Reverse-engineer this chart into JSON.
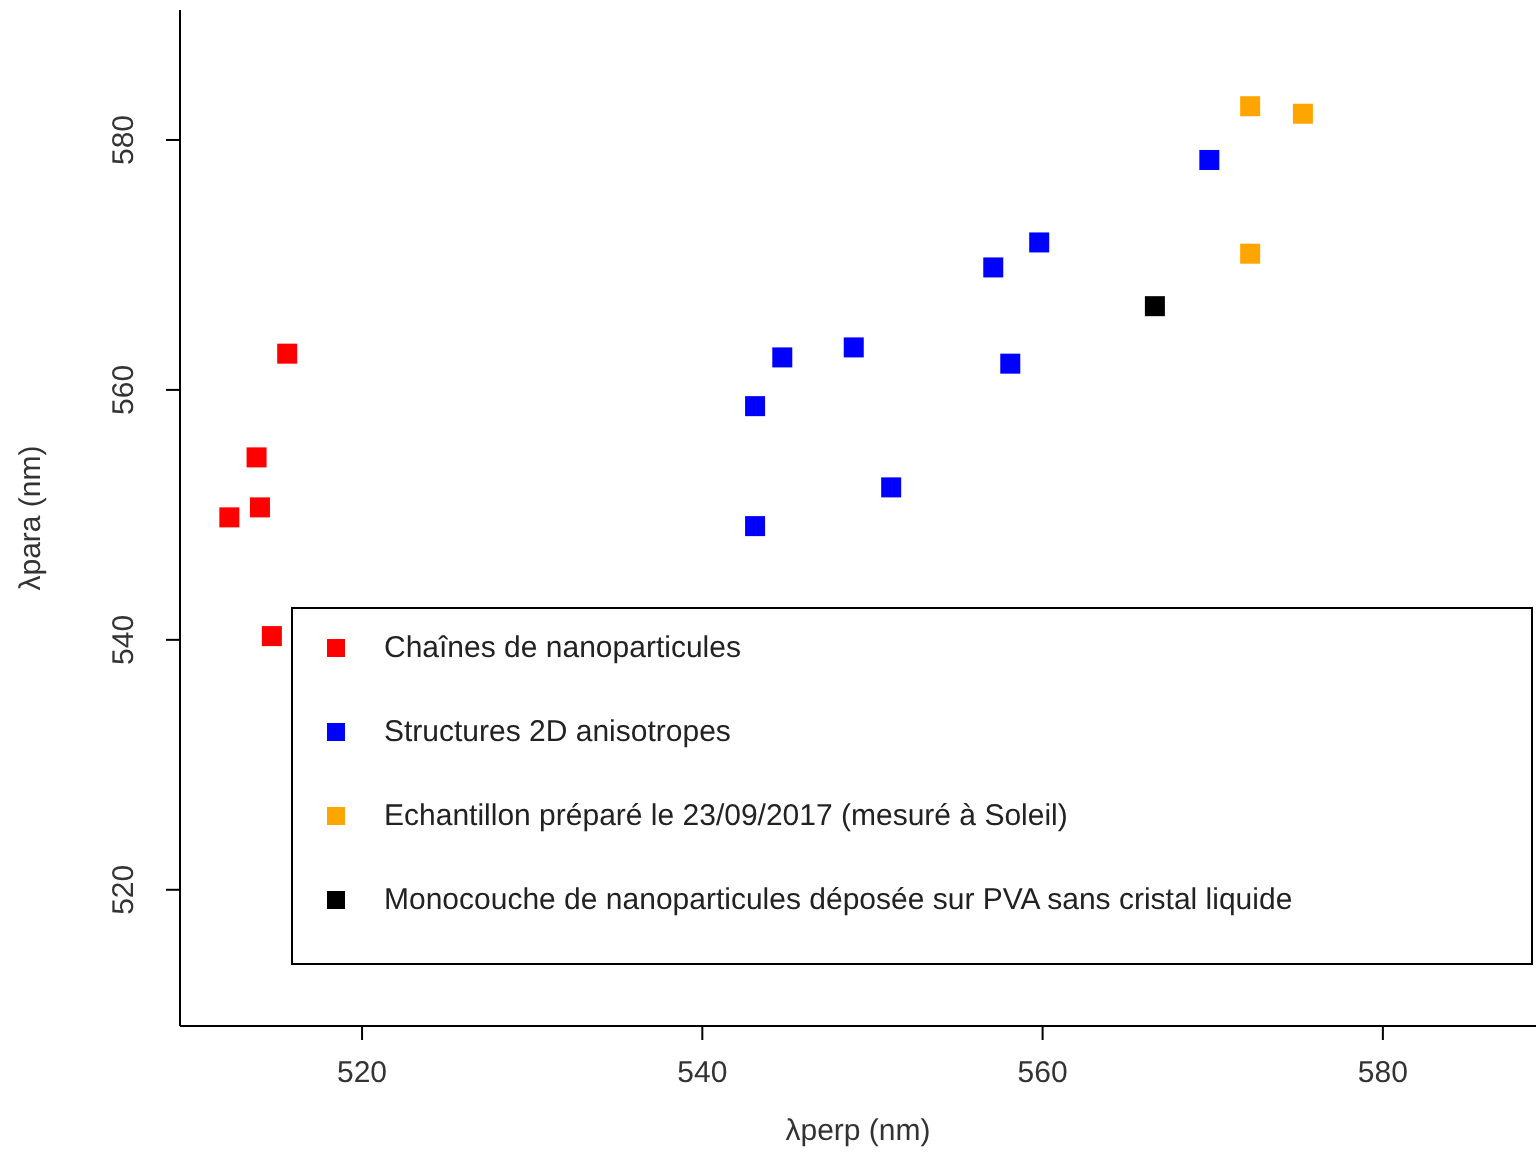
{
  "chart_data": {
    "type": "scatter",
    "xlabel": "λperp (nm)",
    "ylabel": "λpara (nm)",
    "xlim": [
      509.3,
      589
    ],
    "ylim": [
      509.1,
      590.4
    ],
    "xticks": [
      520,
      540,
      560,
      580
    ],
    "yticks": [
      520,
      540,
      560,
      580
    ],
    "grid": false,
    "legend": "bottom right",
    "marker": "square",
    "series": [
      {
        "name": "Chaînes de nanoparticules",
        "color": "#ff0000",
        "x": [
          512.2,
          513.8,
          514.0,
          515.6,
          514.7
        ],
        "values": [
          549.8,
          554.6,
          550.6,
          562.9,
          540.3
        ]
      },
      {
        "name": "Structures 2D anisotropes",
        "color": "#0000ff",
        "x": [
          543.1,
          543.1,
          544.7,
          548.9,
          551.1,
          557.1,
          558.1,
          559.8,
          569.8
        ],
        "values": [
          549.1,
          558.7,
          562.6,
          563.4,
          552.2,
          569.8,
          562.1,
          571.8,
          578.4
        ]
      },
      {
        "name": "Echantillon préparé le 23/09/2017 (mesuré à Soleil)",
        "color": "#ffa500",
        "x": [
          572.2,
          575.3,
          572.2
        ],
        "values": [
          582.7,
          582.1,
          570.9
        ]
      },
      {
        "name": "Monocouche de nanoparticules déposée sur PVA sans cristal liquide",
        "color": "#000000",
        "x": [
          566.6
        ],
        "values": [
          566.7
        ]
      }
    ]
  }
}
